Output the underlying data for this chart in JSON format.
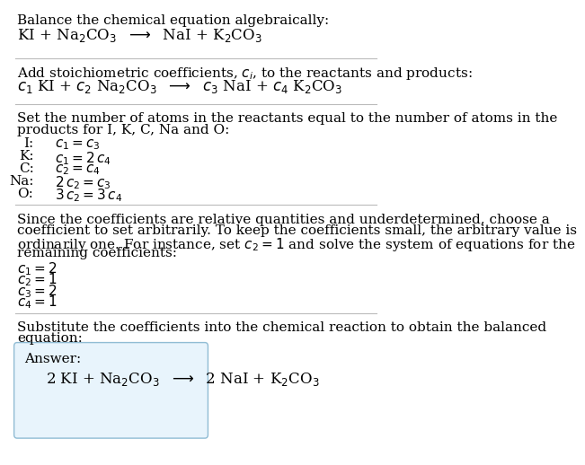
{
  "title_line": "Balance the chemical equation algebraically:",
  "eq1": "KI + Na$_2$CO$_3$  $\\longrightarrow$  NaI + K$_2$CO$_3$",
  "section2_title": "Add stoichiometric coefficients, $c_i$, to the reactants and products:",
  "eq2": "$c_1$ KI + $c_2$ Na$_2$CO$_3$  $\\longrightarrow$  $c_3$ NaI + $c_4$ K$_2$CO$_3$",
  "section3_title": "Set the number of atoms in the reactants equal to the number of atoms in the",
  "section3_title2": "products for I, K, C, Na and O:",
  "atoms": [
    [
      "I:",
      "$c_1 = c_3$"
    ],
    [
      "K:",
      "$c_1 = 2\\,c_4$"
    ],
    [
      "C:",
      "$c_2 = c_4$"
    ],
    [
      "Na:",
      "$2\\,c_2 = c_3$"
    ],
    [
      "O:",
      "$3\\,c_2 = 3\\,c_4$"
    ]
  ],
  "section4_line1": "Since the coefficients are relative quantities and underdetermined, choose a",
  "section4_line2": "coefficient to set arbitrarily. To keep the coefficients small, the arbitrary value is",
  "section4_line3": "ordinarily one. For instance, set $c_2 = 1$ and solve the system of equations for the",
  "section4_line4": "remaining coefficients:",
  "coeff_solutions": [
    "$c_1 = 2$",
    "$c_2 = 1$",
    "$c_3 = 2$",
    "$c_4 = 1$"
  ],
  "section5_line1": "Substitute the coefficients into the chemical reaction to obtain the balanced",
  "section5_line2": "equation:",
  "answer_label": "Answer:",
  "answer_eq": "2 KI + Na$_2$CO$_3$  $\\longrightarrow$  2 NaI + K$_2$CO$_3$",
  "bg_color": "#ffffff",
  "text_color": "#000000",
  "answer_box_facecolor": "#e8f4fc",
  "answer_box_edgecolor": "#90bcd4",
  "separator_color": "#bbbbbb",
  "font_size": 11,
  "answer_eq_fontsize": 12
}
